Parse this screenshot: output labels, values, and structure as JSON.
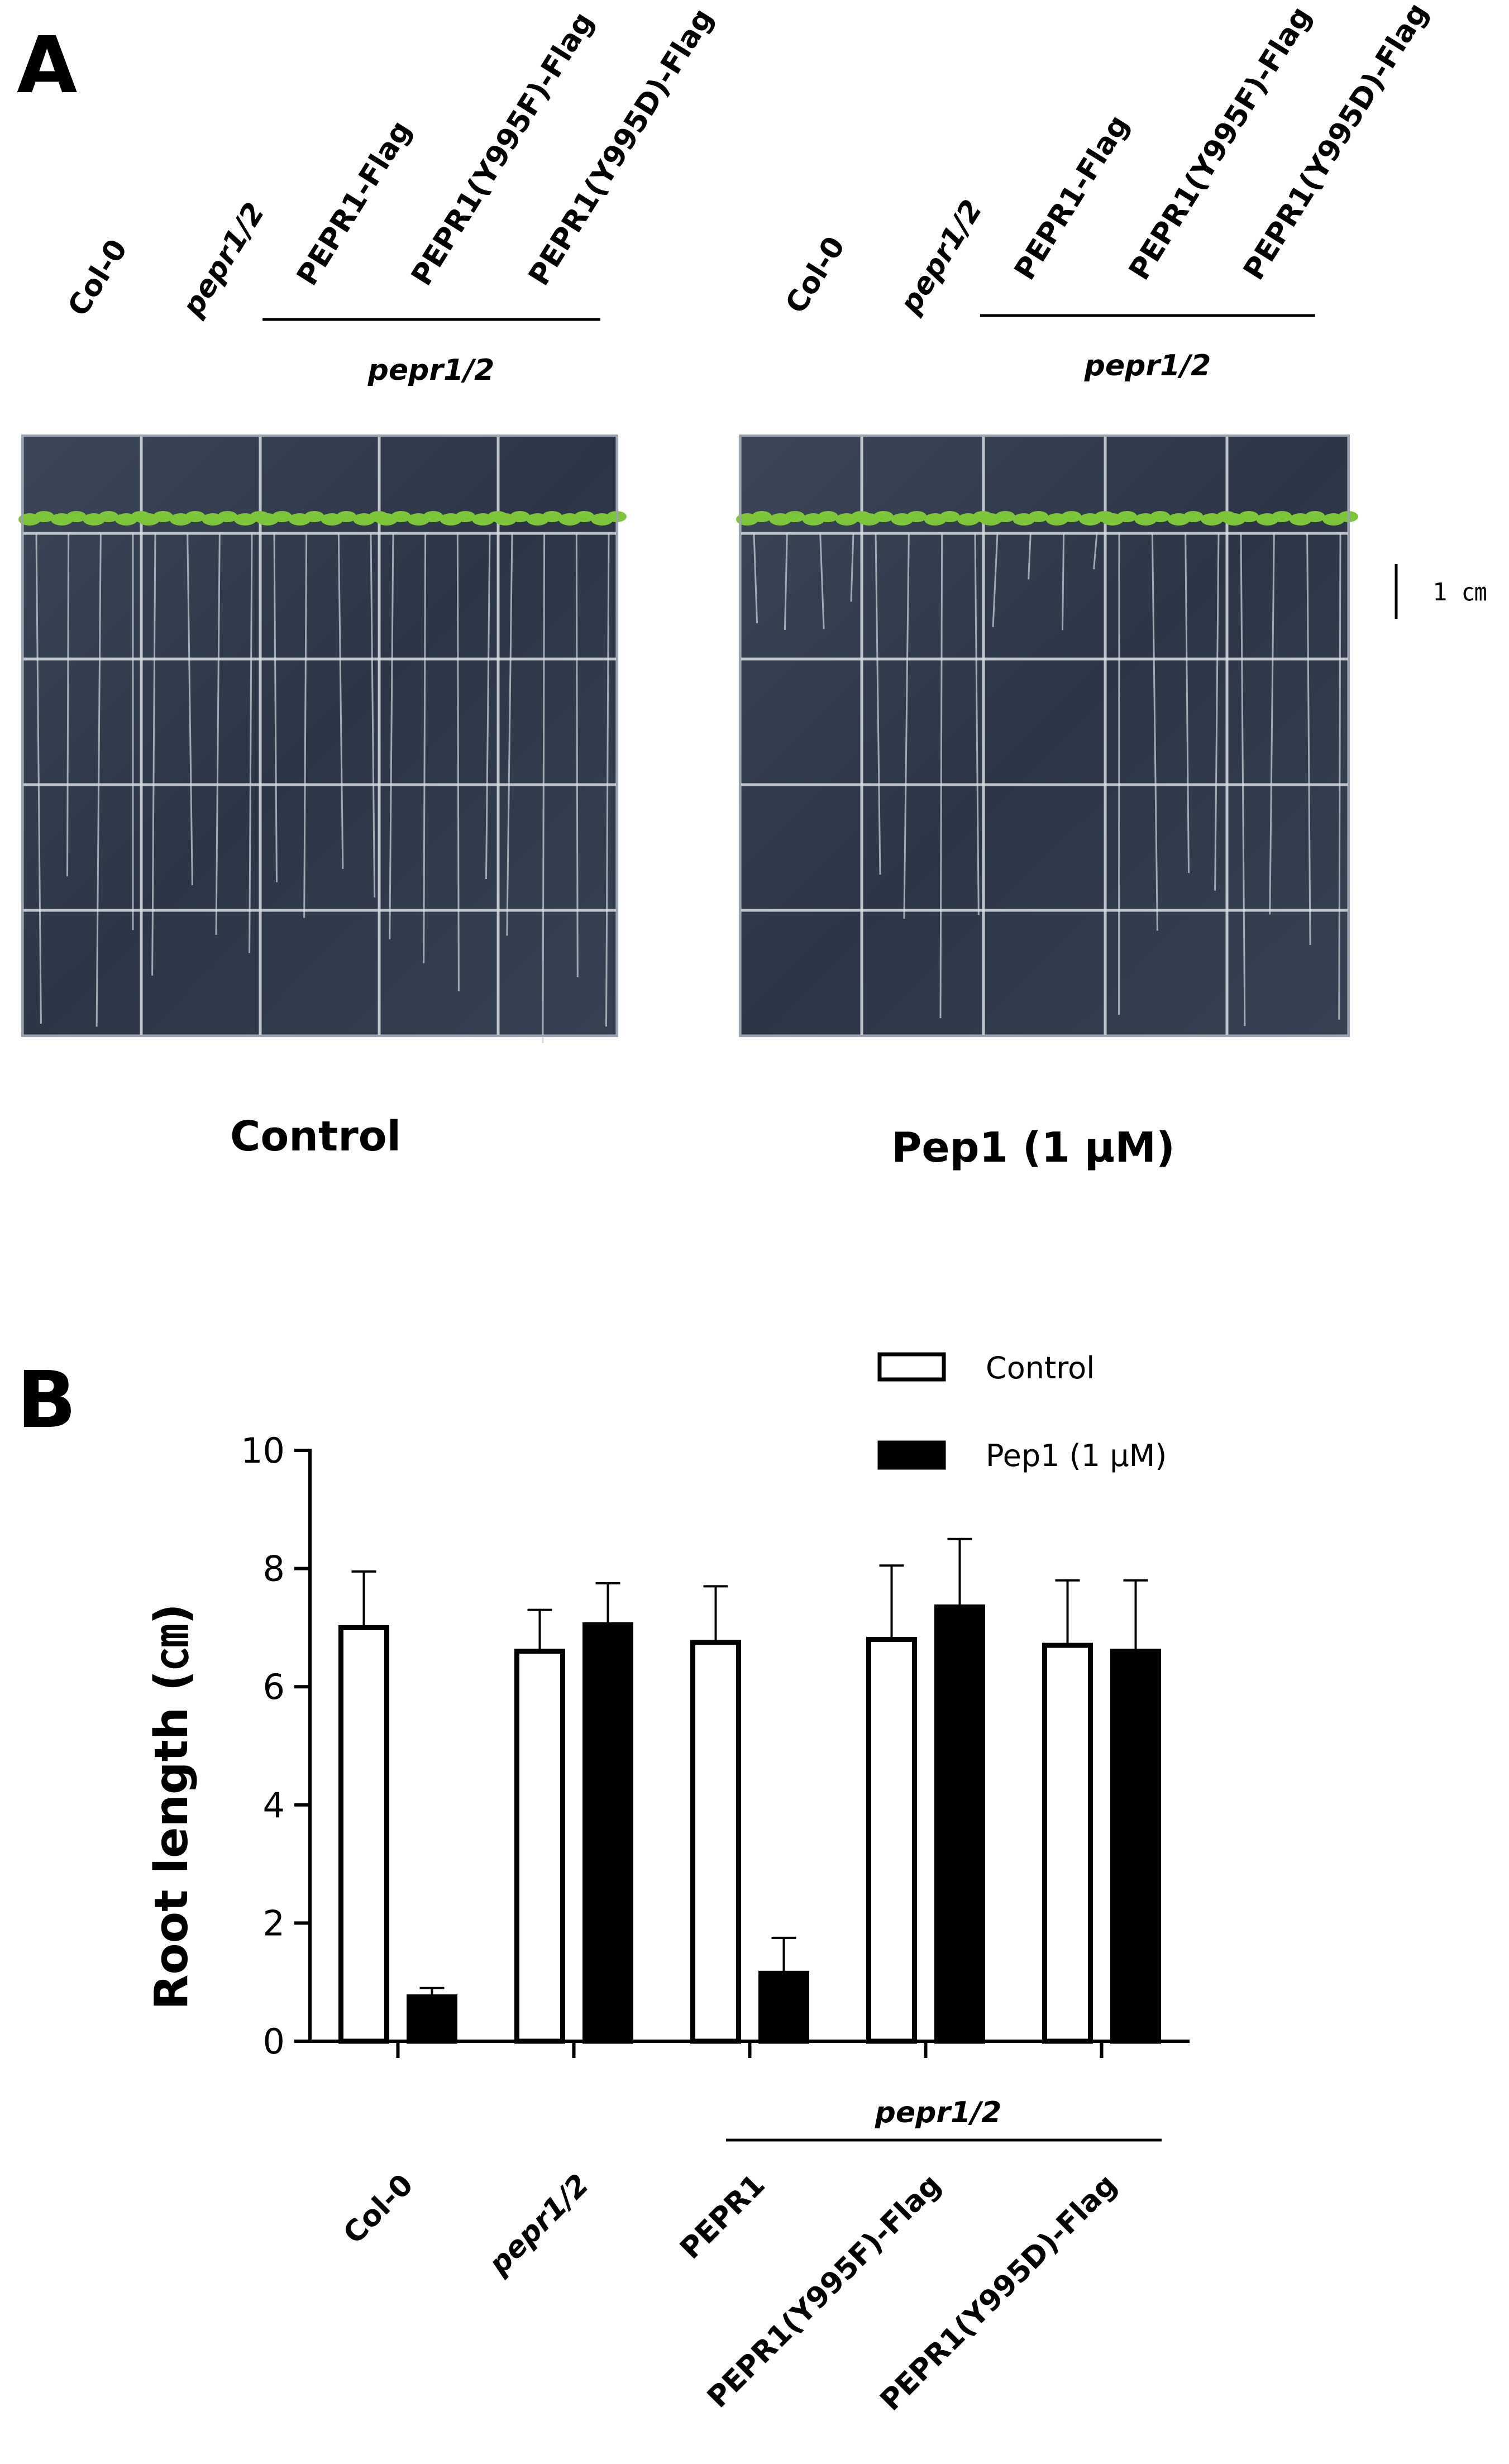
{
  "panel_a": {
    "letter": "A",
    "genotypes": [
      "Col-0",
      "pepr1/2",
      "PEPR1-Flag",
      "PEPR1(Y995F)-Flag",
      "PEPR1(Y995D)-Flag"
    ],
    "group_label": "pepr1/2",
    "condition_left": "Control",
    "condition_right": "Pep1 (1 μM)",
    "scale_bar": "1 ㎝",
    "colors": {
      "plate": "#2f3b4d",
      "grid": "#d9dde3",
      "leaf": "#7dc63a",
      "root": "#c9ced6"
    }
  },
  "panel_b": {
    "letter": "B",
    "group_label": "pepr1/2",
    "colors": {
      "control": "#ffffff",
      "pep1": "#000000"
    }
  },
  "chart_data": {
    "type": "bar",
    "categories": [
      "Col-0",
      "pepr1/2",
      "PEPR1",
      "PEPR1(Y995F)-Flag",
      "PEPR1(Y995D)-Flag"
    ],
    "series": [
      {
        "name": "Control",
        "values": [
          7.0,
          6.6,
          6.75,
          6.8,
          6.7
        ],
        "errors": [
          0.95,
          0.7,
          0.95,
          1.25,
          1.1
        ]
      },
      {
        "name": "Pep1 (1 μM)",
        "values": [
          0.75,
          7.05,
          1.15,
          7.35,
          6.6
        ],
        "errors": [
          0.15,
          0.7,
          0.6,
          1.15,
          1.2
        ]
      }
    ],
    "ylabel": "Root length (㎝)",
    "xlabel": "",
    "ylim": [
      0,
      10
    ],
    "yticks": [
      0,
      2,
      4,
      6,
      8,
      10
    ],
    "legend_position": "top-right",
    "grid": false
  }
}
